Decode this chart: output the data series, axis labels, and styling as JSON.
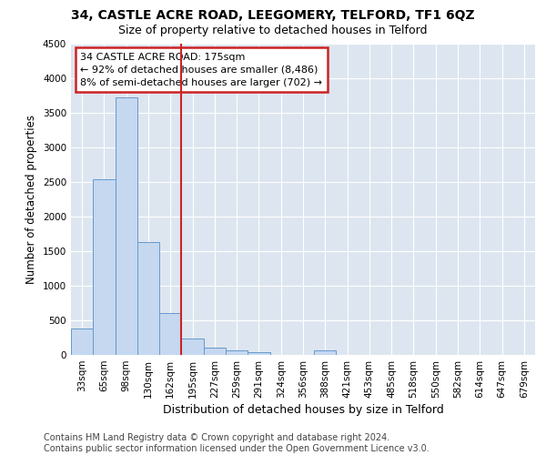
{
  "title": "34, CASTLE ACRE ROAD, LEEGOMERY, TELFORD, TF1 6QZ",
  "subtitle": "Size of property relative to detached houses in Telford",
  "xlabel": "Distribution of detached houses by size in Telford",
  "ylabel": "Number of detached properties",
  "categories": [
    "33sqm",
    "65sqm",
    "98sqm",
    "130sqm",
    "162sqm",
    "195sqm",
    "227sqm",
    "259sqm",
    "291sqm",
    "324sqm",
    "356sqm",
    "388sqm",
    "421sqm",
    "453sqm",
    "485sqm",
    "518sqm",
    "550sqm",
    "582sqm",
    "614sqm",
    "647sqm",
    "679sqm"
  ],
  "values": [
    375,
    2530,
    3720,
    1630,
    600,
    240,
    110,
    60,
    45,
    0,
    0,
    65,
    0,
    0,
    0,
    0,
    0,
    0,
    0,
    0,
    0
  ],
  "bar_color": "#c5d8f0",
  "bar_edge_color": "#6699cc",
  "vline_x_index": 4.5,
  "vline_color": "#cc2222",
  "annotation_text": "34 CASTLE ACRE ROAD: 175sqm\n← 92% of detached houses are smaller (8,486)\n8% of semi-detached houses are larger (702) →",
  "annotation_box_color": "#cc2222",
  "ylim": [
    0,
    4500
  ],
  "yticks": [
    0,
    500,
    1000,
    1500,
    2000,
    2500,
    3000,
    3500,
    4000,
    4500
  ],
  "background_color": "#dde6f0",
  "grid_color": "#ffffff",
  "footer": "Contains HM Land Registry data © Crown copyright and database right 2024.\nContains public sector information licensed under the Open Government Licence v3.0.",
  "title_fontsize": 10,
  "subtitle_fontsize": 9,
  "xlabel_fontsize": 9,
  "ylabel_fontsize": 8.5,
  "tick_fontsize": 7.5,
  "footer_fontsize": 7
}
